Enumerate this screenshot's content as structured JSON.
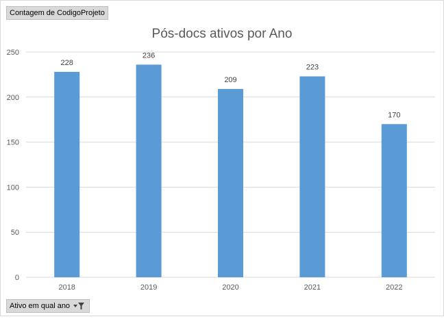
{
  "field_button": {
    "label": "Contagem de CodigoProjeto"
  },
  "filter_button": {
    "label": "Ativo em qual ano"
  },
  "icons": {
    "filter": "dropdown-filter-icon"
  },
  "colors": {
    "bar": "#5b9bd5",
    "grid": "#d9d9d9",
    "axis_text": "#595959",
    "title_text": "#595959",
    "label_text": "#404040"
  },
  "chart_data": {
    "type": "bar",
    "title": "Pós-docs ativos por Ano",
    "xlabel": "",
    "ylabel": "",
    "categories": [
      "2018",
      "2019",
      "2020",
      "2021",
      "2022"
    ],
    "values": [
      228,
      236,
      209,
      223,
      170
    ],
    "ylim": [
      0,
      250
    ],
    "yticks": [
      0,
      50,
      100,
      150,
      200,
      250
    ],
    "data_labels": true,
    "grid": true,
    "legend": "none"
  }
}
